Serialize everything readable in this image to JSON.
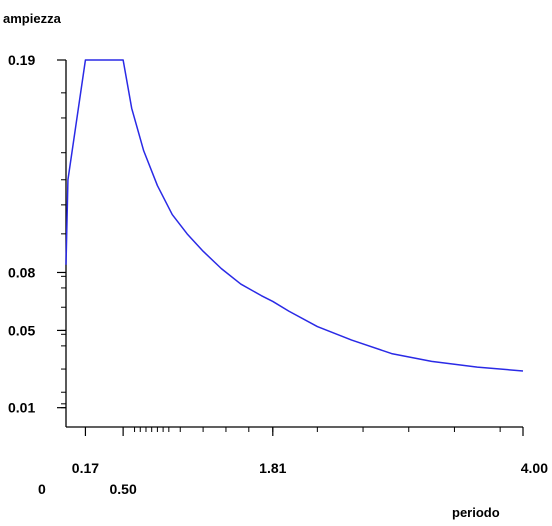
{
  "chart_data": {
    "type": "line",
    "title": "",
    "ylabel": "ampiezza",
    "xlabel": "periodo",
    "xlim": [
      0,
      4.0
    ],
    "ylim": [
      0,
      0.19
    ],
    "origin_label": "0",
    "x_tick_labels": [
      {
        "value": 0.17,
        "label": "0.17"
      },
      {
        "value": 0.5,
        "label": "0.50"
      },
      {
        "value": 1.81,
        "label": "1.81"
      },
      {
        "value": 4.0,
        "label": "4.00"
      }
    ],
    "y_tick_labels": [
      {
        "value": 0.19,
        "label": "0.19"
      },
      {
        "value": 0.08,
        "label": "0.08"
      },
      {
        "value": 0.05,
        "label": "0.05"
      },
      {
        "value": 0.01,
        "label": "0.01"
      }
    ],
    "x_minor_ticks": [
      0.6,
      0.65,
      0.7,
      0.75,
      0.8,
      0.85,
      0.9,
      1.0,
      1.2,
      1.4,
      1.6,
      1.81,
      2.2,
      2.6,
      3.0,
      3.4,
      3.8
    ],
    "y_minor_ticks": [
      0.01,
      0.012,
      0.018,
      0.03,
      0.042,
      0.048,
      0.05,
      0.062,
      0.072,
      0.078,
      0.08,
      0.1,
      0.115,
      0.128,
      0.142,
      0.16,
      0.173
    ],
    "grid": false,
    "legend": "none",
    "series_color": "#2a2ae6",
    "axis_color": "#000000",
    "series": [
      {
        "x": [
          0.0,
          0.017,
          0.17,
          0.5,
          0.575,
          0.68,
          0.8,
          0.93,
          1.06,
          1.2,
          1.36,
          1.53,
          1.71,
          1.81,
          1.95,
          2.2,
          2.5,
          2.85,
          3.2,
          3.6,
          4.0
        ],
        "y": [
          0.084,
          0.128,
          0.19,
          0.19,
          0.165,
          0.143,
          0.125,
          0.11,
          0.1,
          0.091,
          0.082,
          0.074,
          0.068,
          0.065,
          0.06,
          0.052,
          0.045,
          0.038,
          0.034,
          0.031,
          0.029
        ]
      }
    ]
  }
}
